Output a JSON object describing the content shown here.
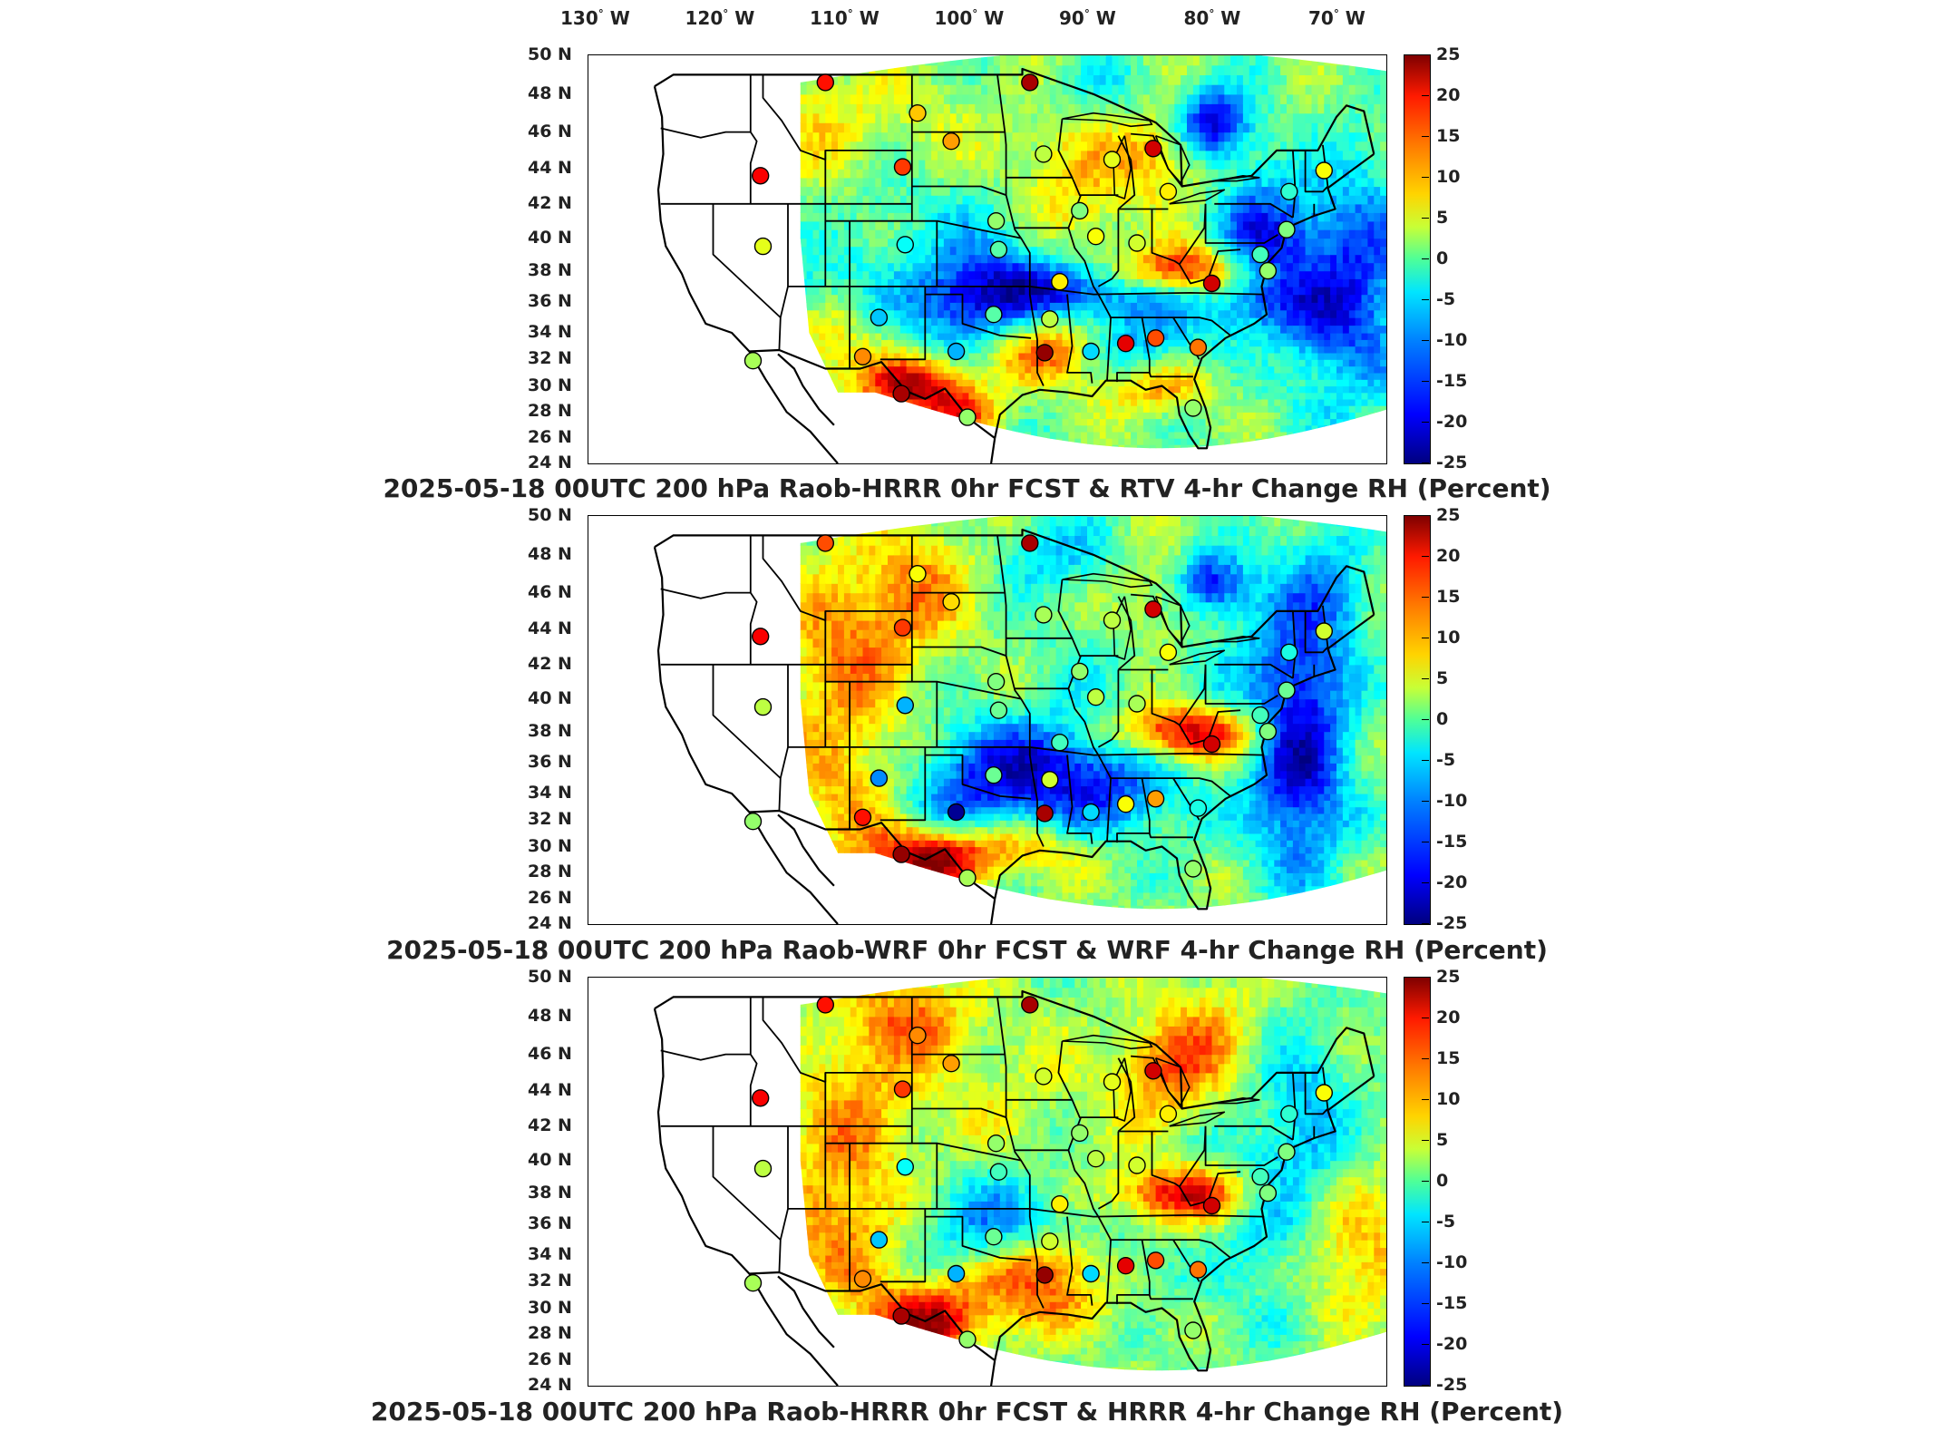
{
  "top_axis_labels": [
    {
      "deg": "130",
      "dir": "W"
    },
    {
      "deg": "120",
      "dir": "W"
    },
    {
      "deg": "110",
      "dir": "W"
    },
    {
      "deg": "100",
      "dir": "W"
    },
    {
      "deg": "90",
      "dir": "W"
    },
    {
      "deg": "80",
      "dir": "W"
    },
    {
      "deg": "70",
      "dir": "W"
    }
  ],
  "chart_data": [
    {
      "type": "heatmap",
      "title": "2025-05-18 00UTC 200 hPa Raob-HRRR 0hr FCST & RTV 4-hr Change RH (Percent)",
      "x_ticks": [
        "130 W",
        "120 W",
        "110 W",
        "100 W",
        "90 W",
        "80 W",
        "70 W"
      ],
      "y_ticks": [
        "50 N",
        "48 N",
        "46 N",
        "44 N",
        "42 N",
        "40 N",
        "38 N",
        "36 N",
        "34 N",
        "32 N",
        "30 N",
        "28 N",
        "26 N",
        "24 N"
      ],
      "colorbar": {
        "min": -25,
        "max": 25,
        "ticks": [
          25,
          20,
          15,
          10,
          5,
          0,
          -5,
          -10,
          -15,
          -20,
          -25
        ]
      }
    },
    {
      "type": "heatmap",
      "title": "2025-05-18 00UTC 200 hPa Raob-WRF 0hr FCST & WRF 4-hr Change RH (Percent)",
      "x_ticks": [
        "130 W",
        "120 W",
        "110 W",
        "100 W",
        "90 W",
        "80 W",
        "70 W"
      ],
      "y_ticks": [
        "50 N",
        "48 N",
        "46 N",
        "44 N",
        "42 N",
        "40 N",
        "38 N",
        "36 N",
        "34 N",
        "32 N",
        "30 N",
        "28 N",
        "26 N",
        "24 N"
      ],
      "colorbar": {
        "min": -25,
        "max": 25,
        "ticks": [
          25,
          20,
          15,
          10,
          5,
          0,
          -5,
          -10,
          -15,
          -20,
          -25
        ]
      }
    },
    {
      "type": "heatmap",
      "title": "2025-05-18 00UTC 200 hPa Raob-HRRR 0hr FCST & HRRR 4-hr Change RH (Percent)",
      "x_ticks": [
        "130 W",
        "120 W",
        "110 W",
        "100 W",
        "90 W",
        "80 W",
        "70 W"
      ],
      "y_ticks": [
        "50 N",
        "48 N",
        "46 N",
        "44 N",
        "42 N",
        "40 N",
        "38 N",
        "36 N",
        "34 N",
        "32 N",
        "30 N",
        "28 N",
        "26 N",
        "24 N"
      ],
      "colorbar": {
        "min": -25,
        "max": 25,
        "ticks": [
          25,
          20,
          15,
          10,
          5,
          0,
          -5,
          -10,
          -15,
          -20,
          -25
        ]
      }
    }
  ],
  "colors": {
    "low": "#00007f",
    "mid": "#4dff99",
    "high": "#7f0000"
  },
  "raob_stations": [
    {
      "lon": -111.0,
      "lat": 48.6,
      "v": [
        18,
        15,
        18
      ]
    },
    {
      "lon": -94.6,
      "lat": 48.6,
      "v": [
        23,
        23,
        23
      ]
    },
    {
      "lon": -103.6,
      "lat": 47.0,
      "v": [
        9,
        6,
        12
      ]
    },
    {
      "lon": -100.9,
      "lat": 45.5,
      "v": [
        11,
        8,
        11
      ]
    },
    {
      "lon": -116.2,
      "lat": 43.6,
      "v": [
        19,
        19,
        19
      ]
    },
    {
      "lon": -104.8,
      "lat": 44.1,
      "v": [
        16,
        16,
        16
      ]
    },
    {
      "lon": -93.5,
      "lat": 44.8,
      "v": [
        3,
        2,
        4
      ]
    },
    {
      "lon": -88.0,
      "lat": 44.5,
      "v": [
        5,
        3,
        5
      ]
    },
    {
      "lon": -84.7,
      "lat": 45.1,
      "v": [
        21,
        21,
        21
      ]
    },
    {
      "lon": -83.5,
      "lat": 42.7,
      "v": [
        7,
        6,
        7
      ]
    },
    {
      "lon": -97.3,
      "lat": 41.0,
      "v": [
        1,
        0,
        1
      ]
    },
    {
      "lon": -90.6,
      "lat": 41.6,
      "v": [
        0,
        1,
        1
      ]
    },
    {
      "lon": -89.3,
      "lat": 40.1,
      "v": [
        6,
        3,
        3
      ]
    },
    {
      "lon": -86.0,
      "lat": 39.7,
      "v": [
        4,
        2,
        4
      ]
    },
    {
      "lon": -116.0,
      "lat": 39.5,
      "v": [
        5,
        3,
        3
      ]
    },
    {
      "lon": -104.6,
      "lat": 39.6,
      "v": [
        -6,
        -10,
        -6
      ]
    },
    {
      "lon": -97.1,
      "lat": 39.3,
      "v": [
        -2,
        -1,
        -3
      ]
    },
    {
      "lon": -92.2,
      "lat": 37.3,
      "v": [
        7,
        -3,
        7
      ]
    },
    {
      "lon": -80.0,
      "lat": 37.2,
      "v": [
        21,
        21,
        21
      ]
    },
    {
      "lon": -106.7,
      "lat": 35.0,
      "v": [
        -9,
        -12,
        -9
      ]
    },
    {
      "lon": -97.5,
      "lat": 35.2,
      "v": [
        -2,
        -1,
        -1
      ]
    },
    {
      "lon": -93.0,
      "lat": 34.9,
      "v": [
        3,
        4,
        4
      ]
    },
    {
      "lon": -86.9,
      "lat": 33.2,
      "v": [
        20,
        6,
        20
      ]
    },
    {
      "lon": -84.5,
      "lat": 33.6,
      "v": [
        15,
        11,
        15
      ]
    },
    {
      "lon": -81.1,
      "lat": 32.9,
      "v": [
        13,
        -5,
        13
      ]
    },
    {
      "lon": -116.8,
      "lat": 31.9,
      "v": [
        2,
        1,
        2
      ]
    },
    {
      "lon": -108.0,
      "lat": 32.2,
      "v": [
        12,
        18,
        12
      ]
    },
    {
      "lon": -100.5,
      "lat": 32.6,
      "v": [
        -10,
        -24,
        -10
      ]
    },
    {
      "lon": -93.4,
      "lat": 32.5,
      "v": [
        24,
        23,
        24
      ]
    },
    {
      "lon": -89.7,
      "lat": 32.6,
      "v": [
        -8,
        -8,
        -8
      ]
    },
    {
      "lon": -104.9,
      "lat": 29.4,
      "v": [
        23,
        24,
        23
      ]
    },
    {
      "lon": -99.6,
      "lat": 27.6,
      "v": [
        1,
        2,
        1
      ]
    },
    {
      "lon": -81.5,
      "lat": 28.3,
      "v": [
        1,
        1,
        1
      ]
    },
    {
      "lon": -74.0,
      "lat": 40.5,
      "v": [
        0,
        -1,
        0
      ]
    },
    {
      "lon": -76.1,
      "lat": 39.0,
      "v": [
        -3,
        -3,
        -3
      ]
    },
    {
      "lon": -75.5,
      "lat": 38.0,
      "v": [
        1,
        0,
        0
      ]
    },
    {
      "lon": -71.0,
      "lat": 43.9,
      "v": [
        6,
        4,
        6
      ]
    },
    {
      "lon": -73.8,
      "lat": 42.7,
      "v": [
        -4,
        -5,
        -4
      ]
    }
  ]
}
